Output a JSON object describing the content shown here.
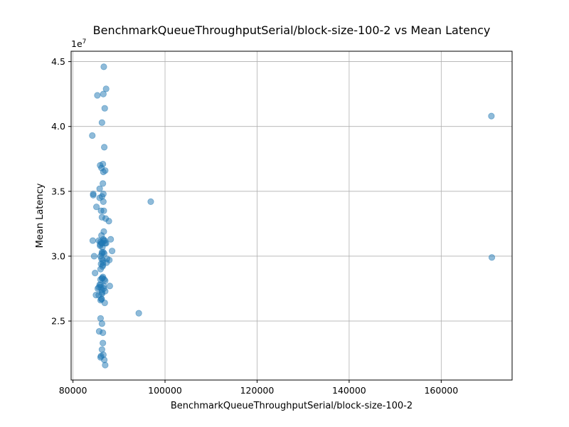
{
  "chart_data": {
    "type": "scatter",
    "title": "BenchmarkQueueThroughputSerial/block-size-100-2 vs Mean Latency",
    "xlabel": "BenchmarkQueueThroughputSerial/block-size-100-2",
    "ylabel": "Mean Latency",
    "y_offset_label": "1e7",
    "xlim": [
      79600,
      175400
    ],
    "ylim": [
      20450000,
      45800000
    ],
    "x_ticks": [
      80000,
      100000,
      120000,
      140000,
      160000
    ],
    "x_tick_labels": [
      "80000",
      "100000",
      "120000",
      "140000",
      "160000"
    ],
    "y_ticks": [
      25000000,
      30000000,
      35000000,
      40000000,
      45000000
    ],
    "y_tick_labels": [
      "2.5",
      "3.0",
      "3.5",
      "4.0",
      "4.5"
    ],
    "grid": true,
    "marker_color": "#1f77b4",
    "x": [
      86700,
      87200,
      85300,
      86600,
      86900,
      86300,
      84200,
      86800,
      85900,
      86500,
      86200,
      87000,
      86600,
      86500,
      84400,
      84400,
      85800,
      86300,
      85800,
      86600,
      85100,
      86600,
      86100,
      86700,
      87800,
      87100,
      86300,
      88200,
      84300,
      86700,
      86200,
      85600,
      86000,
      87200,
      86600,
      86400,
      88500,
      84600,
      86300,
      86600,
      86800,
      87900,
      86200,
      86100,
      87300,
      86500,
      86400,
      84800,
      86500,
      86000,
      86300,
      86000,
      86700,
      86000,
      85600,
      88000,
      86300,
      85400,
      87000,
      85600,
      86200,
      86900,
      86200,
      86300,
      86300,
      86000,
      86800,
      86000,
      86500,
      85000,
      86300,
      85900,
      87000,
      86500,
      87000,
      85800,
      86700,
      87400,
      86000,
      86400,
      85900,
      86900,
      86200,
      86700,
      86400,
      96900,
      94300,
      170900,
      171000,
      86500,
      86300,
      85700,
      86000,
      86500,
      86300,
      86100,
      86800,
      86000,
      86600,
      87000
    ],
    "y": [
      44600000,
      42900000,
      42400000,
      42500000,
      41400000,
      40300000,
      39300000,
      38400000,
      37000000,
      37100000,
      36800000,
      36600000,
      36500000,
      35600000,
      34800000,
      34700000,
      35200000,
      34600000,
      34500000,
      34800000,
      33800000,
      34200000,
      33500000,
      33500000,
      32700000,
      32900000,
      33000000,
      31300000,
      31200000,
      31900000,
      31600000,
      31200000,
      31100000,
      31000000,
      31300000,
      30700000,
      30400000,
      30000000,
      30300000,
      30300000,
      30200000,
      29700000,
      29800000,
      29400000,
      29500000,
      29300000,
      29200000,
      28700000,
      28400000,
      28200000,
      28300000,
      27800000,
      27700000,
      27600000,
      27600000,
      27700000,
      27400000,
      27500000,
      27300000,
      27000000,
      26700000,
      26400000,
      26700000,
      27100000,
      27200000,
      26600000,
      28200000,
      29000000,
      29700000,
      27000000,
      30200000,
      30800000,
      31000000,
      29500000,
      28100000,
      27800000,
      27500000,
      29800000,
      30000000,
      28300000,
      30900000,
      31200000,
      31000000,
      31200000,
      31000000,
      34200000,
      25600000,
      40800000,
      29900000,
      24100000,
      24800000,
      24200000,
      25200000,
      23300000,
      22800000,
      22300000,
      22000000,
      22200000,
      22400000,
      21600000
    ]
  }
}
